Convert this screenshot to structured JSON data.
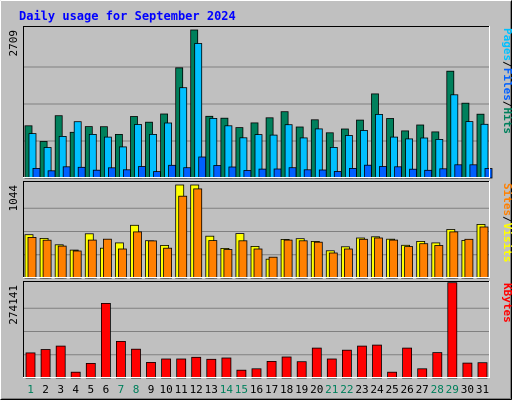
{
  "chart_data": {
    "type": "bar",
    "title": "Daily usage for September 2024",
    "x": [
      "1",
      "2",
      "3",
      "4",
      "5",
      "6",
      "7",
      "8",
      "9",
      "10",
      "11",
      "12",
      "13",
      "14",
      "15",
      "16",
      "17",
      "18",
      "19",
      "20",
      "21",
      "22",
      "23",
      "24",
      "25",
      "26",
      "27",
      "28",
      "29",
      "30",
      "31"
    ],
    "weekend_days": [
      "1",
      "7",
      "8",
      "14",
      "15",
      "21",
      "22",
      "28",
      "29"
    ],
    "panels": [
      {
        "id": "hits",
        "max_label": "2709",
        "ymax": 2709,
        "label_parts": [
          "Pages",
          "Files",
          "Hits"
        ],
        "label_colors": [
          "#00c0ff",
          "#0060ff",
          "#00805c"
        ],
        "series": [
          {
            "name": "Hits",
            "color": "#00805c",
            "values": [
              955,
              668,
              1140,
              836,
              941,
              939,
              798,
              1125,
              1021,
              1172,
              2015,
              2709,
              1129,
              1094,
              922,
              1008,
              1102,
              1213,
              934,
              1066,
              828,
              896,
              1060,
              1539,
              1090,
              863,
              971,
              843,
              1954,
              1370,
              1168
            ]
          },
          {
            "name": "Files",
            "color": "#00c0ff",
            "values": [
              812,
              559,
              762,
              1031,
              798,
              749,
              570,
              980,
              798,
              1006,
              1652,
              2461,
              1091,
              955,
              735,
              794,
              786,
              976,
              734,
              899,
              560,
              778,
              870,
              1165,
              749,
              716,
              733,
              706,
              1523,
              1033,
              983
            ]
          },
          {
            "name": "Pages",
            "color": "#0060ff",
            "values": [
              175,
              132,
              205,
              196,
              142,
              186,
              150,
              210,
              118,
              233,
              188,
              384,
              229,
              202,
              138,
              163,
              165,
              189,
              150,
              146,
              119,
              176,
              235,
              210,
              205,
              161,
              141,
              169,
              242,
              242,
              174
            ]
          }
        ]
      },
      {
        "id": "visits",
        "max_label": "1044",
        "ymax": 1044,
        "label_parts": [
          "Sites",
          "Visits"
        ],
        "label_colors": [
          "#ff8000",
          "#ffff00"
        ],
        "series": [
          {
            "name": "Visits",
            "color": "#ffff00",
            "values": [
              486,
              444,
              373,
              313,
              496,
              335,
              394,
              592,
              419,
              366,
              1044,
              1044,
              469,
              332,
              498,
              355,
              211,
              433,
              441,
              411,
              305,
              350,
              449,
              463,
              436,
              367,
              411,
              394,
              545,
              422,
              602
            ]
          },
          {
            "name": "Sites",
            "color": "#ff8000",
            "values": [
              456,
              424,
              358,
              303,
              426,
              436,
              326,
              518,
              416,
              335,
              918,
              1000,
              420,
              320,
              418,
              325,
              233,
              426,
              418,
              402,
              281,
              325,
              434,
              449,
              426,
              353,
              385,
              365,
              518,
              435,
              573
            ]
          }
        ]
      },
      {
        "id": "kbytes",
        "max_label": "274141",
        "ymax": 274141,
        "label_parts": [
          "KBytes"
        ],
        "label_colors": [
          "#ff0000"
        ],
        "series": [
          {
            "name": "KBytes",
            "color": "#ff0000",
            "values": [
              74000,
              84000,
              94000,
              17000,
              43000,
              220000,
              108000,
              85000,
              46000,
              56000,
              56000,
              61000,
              55000,
              59000,
              23000,
              27000,
              49000,
              62000,
              48000,
              88000,
              56000,
              82000,
              94000,
              97000,
              17000,
              88000,
              27000,
              75000,
              281000,
              44000,
              45000
            ]
          }
        ]
      }
    ]
  }
}
